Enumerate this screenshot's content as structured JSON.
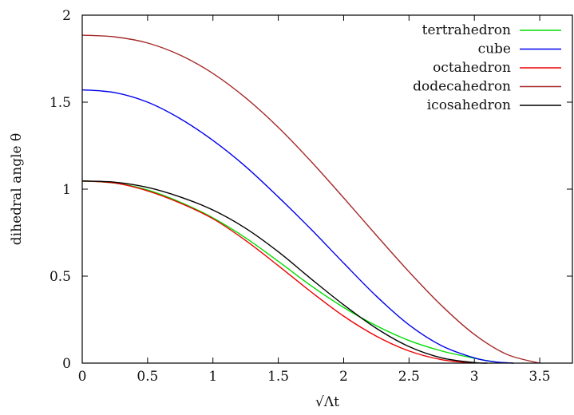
{
  "chart_data": {
    "type": "line",
    "xlabel": "√Λt",
    "ylabel": "dihedral angle θ",
    "xlim": [
      0,
      3.75
    ],
    "ylim": [
      0,
      2
    ],
    "xticks": [
      "0",
      "0.5",
      "1",
      "1.5",
      "2",
      "2.5",
      "3",
      "3.5"
    ],
    "xtick_values": [
      0,
      0.5,
      1,
      1.5,
      2,
      2.5,
      3,
      3.5
    ],
    "yticks": [
      "0",
      "0.5",
      "1",
      "1.5",
      "2"
    ],
    "ytick_values": [
      0,
      0.5,
      1,
      1.5,
      2
    ],
    "grid": false,
    "legend_position": "top-right",
    "series": [
      {
        "name": "tertrahedron",
        "color": "#00dd00",
        "x": [
          0,
          0.25,
          0.5,
          0.75,
          1.0,
          1.25,
          1.5,
          1.75,
          2.0,
          2.25,
          2.5,
          2.75,
          3.0,
          3.15,
          3.25
        ],
        "y": [
          1.047,
          1.035,
          0.995,
          0.925,
          0.835,
          0.72,
          0.585,
          0.445,
          0.32,
          0.215,
          0.13,
          0.07,
          0.028,
          0.008,
          0.0
        ]
      },
      {
        "name": "cube",
        "color": "#0000ee",
        "x": [
          0,
          0.25,
          0.5,
          0.75,
          1.0,
          1.25,
          1.5,
          1.75,
          2.0,
          2.25,
          2.5,
          2.75,
          3.0,
          3.15,
          3.3
        ],
        "y": [
          1.571,
          1.555,
          1.5,
          1.405,
          1.28,
          1.13,
          0.955,
          0.77,
          0.575,
          0.385,
          0.22,
          0.1,
          0.03,
          0.008,
          0.0
        ]
      },
      {
        "name": "octahedron",
        "color": "#ee0000",
        "x": [
          0,
          0.25,
          0.5,
          0.75,
          1.0,
          1.25,
          1.5,
          1.75,
          2.0,
          2.25,
          2.5,
          2.75,
          3.0
        ],
        "y": [
          1.047,
          1.035,
          0.99,
          0.92,
          0.83,
          0.705,
          0.56,
          0.41,
          0.27,
          0.155,
          0.07,
          0.02,
          0.0
        ]
      },
      {
        "name": "dodecahedron",
        "color": "#a52a2a",
        "x": [
          0,
          0.25,
          0.5,
          0.75,
          1.0,
          1.25,
          1.5,
          1.75,
          2.0,
          2.25,
          2.5,
          2.75,
          3.0,
          3.25,
          3.5
        ],
        "y": [
          1.885,
          1.875,
          1.84,
          1.77,
          1.665,
          1.525,
          1.355,
          1.16,
          0.95,
          0.735,
          0.525,
          0.33,
          0.165,
          0.05,
          0.0
        ]
      },
      {
        "name": "icosahedron",
        "color": "#000000",
        "x": [
          0,
          0.25,
          0.5,
          0.75,
          1.0,
          1.25,
          1.5,
          1.75,
          2.0,
          2.25,
          2.5,
          2.75,
          3.0,
          3.1
        ],
        "y": [
          1.047,
          1.04,
          1.01,
          0.955,
          0.88,
          0.775,
          0.64,
          0.485,
          0.335,
          0.2,
          0.095,
          0.03,
          0.003,
          0.0
        ]
      }
    ]
  }
}
